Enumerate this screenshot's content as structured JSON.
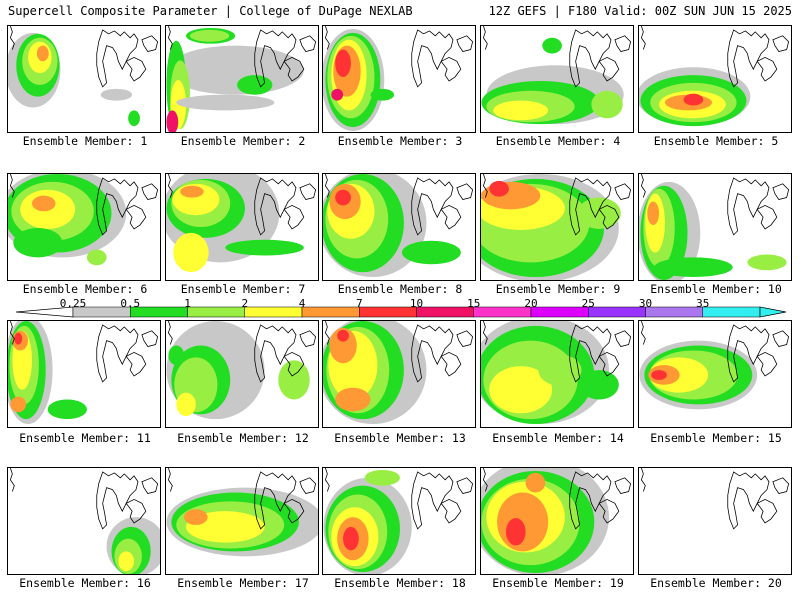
{
  "header": {
    "left": "Supercell Composite Parameter | College of DuPage NEXLAB",
    "right": "12Z GEFS | F180 Valid: 00Z SUN JUN 15 2025"
  },
  "colorbar": {
    "ticks": [
      "0.25",
      "0.5",
      "1",
      "2",
      "4",
      "7",
      "10",
      "15",
      "20",
      "25",
      "30",
      "35"
    ],
    "colors": [
      "#c8c8c8",
      "#22dd22",
      "#99ee44",
      "#ffff33",
      "#ff9933",
      "#ff3333",
      "#ee1166",
      "#ff33cc",
      "#dd00ff",
      "#9933ff",
      "#aa77ee",
      "#33eeee"
    ]
  },
  "members": [
    {
      "label": "Ensemble Member: 1"
    },
    {
      "label": "Ensemble Member: 2"
    },
    {
      "label": "Ensemble Member: 3"
    },
    {
      "label": "Ensemble Member: 4"
    },
    {
      "label": "Ensemble Member: 5"
    },
    {
      "label": "Ensemble Member: 6"
    },
    {
      "label": "Ensemble Member: 7"
    },
    {
      "label": "Ensemble Member: 8"
    },
    {
      "label": "Ensemble Member: 9"
    },
    {
      "label": "Ensemble Member: 10"
    },
    {
      "label": "Ensemble Member: 11"
    },
    {
      "label": "Ensemble Member: 12"
    },
    {
      "label": "Ensemble Member: 13"
    },
    {
      "label": "Ensemble Member: 14"
    },
    {
      "label": "Ensemble Member: 15"
    },
    {
      "label": "Ensemble Member: 16"
    },
    {
      "label": "Ensemble Member: 17"
    },
    {
      "label": "Ensemble Member: 18"
    },
    {
      "label": "Ensemble Member: 19"
    },
    {
      "label": "Ensemble Member: 20"
    }
  ]
}
